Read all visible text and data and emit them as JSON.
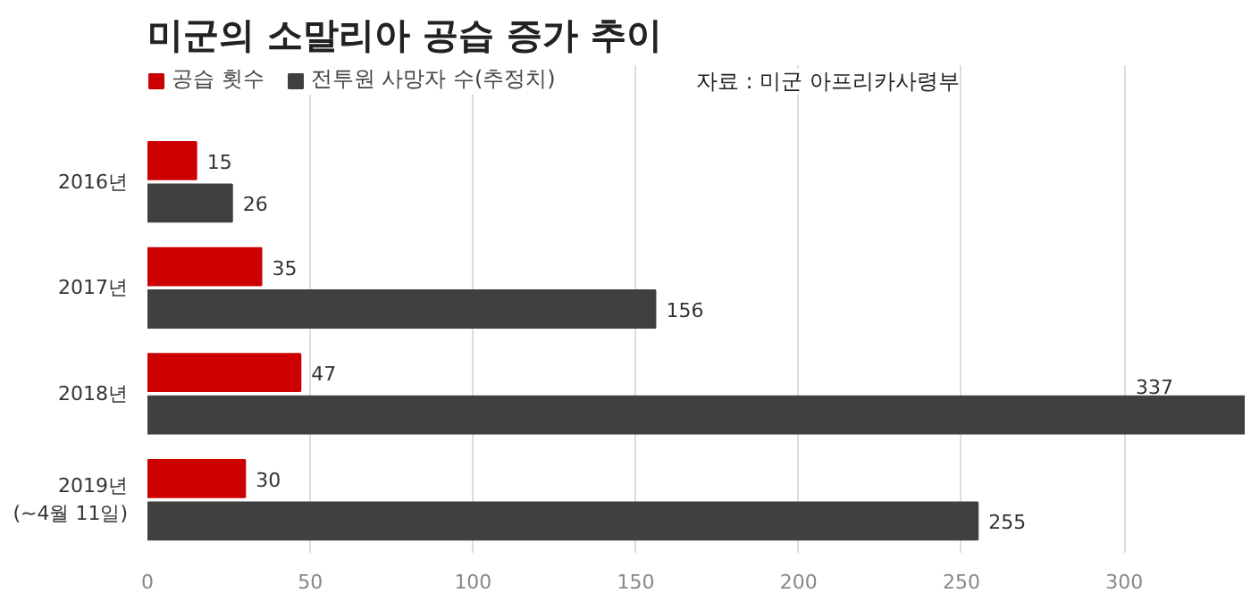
{
  "chart_data": {
    "type": "bar",
    "orientation": "horizontal",
    "title": "미군의 소말리아 공습 증가 추이",
    "categories": [
      "2016년",
      "2017년",
      "2018년",
      "2019년\n(~4월 11일)"
    ],
    "series": [
      {
        "name": "공습 횟수",
        "color": "#cc0000",
        "values": [
          15,
          35,
          47,
          30
        ]
      },
      {
        "name": "전투원 사망자 수(추정치)",
        "color": "#404040",
        "values": [
          26,
          156,
          337,
          255
        ]
      }
    ],
    "xlim": [
      0,
      337
    ],
    "xticks": [
      0,
      50,
      100,
      150,
      200,
      250,
      300
    ],
    "grid": "x",
    "legend": "top left",
    "data_labels": true,
    "annotations": [
      "자료 : 미군 아프리카사령부"
    ]
  }
}
